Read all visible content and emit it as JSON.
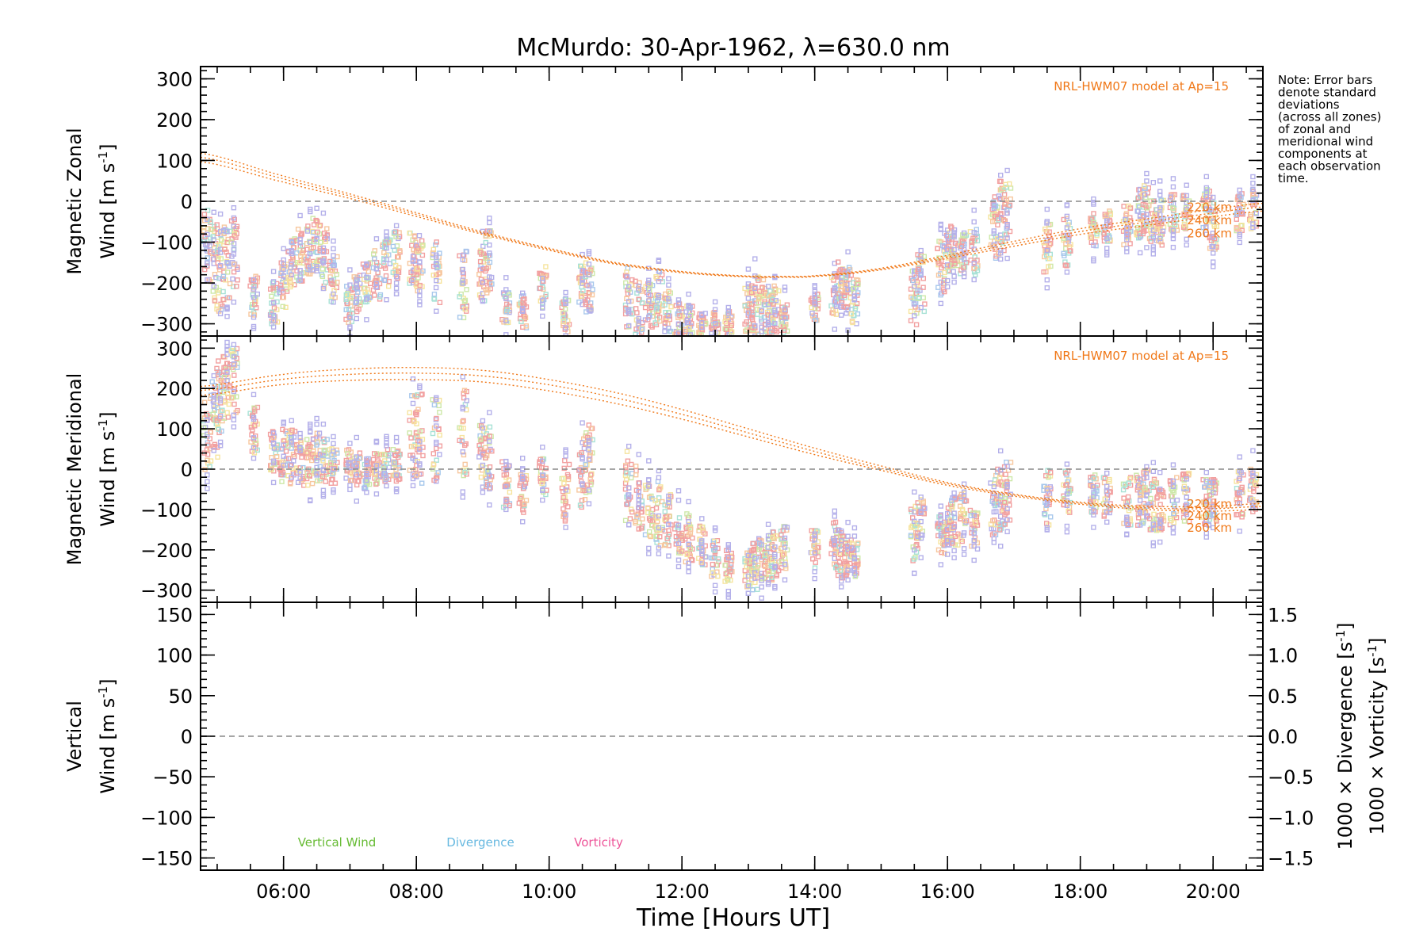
{
  "chart_data": {
    "type": "scatter",
    "title": "McMurdo: 30-Apr-1962, λ=630.0 nm",
    "xlabel": "Time [Hours UT]",
    "x_ticks": [
      "06:00",
      "08:00",
      "10:00",
      "12:00",
      "14:00",
      "16:00",
      "18:00",
      "20:00"
    ],
    "x_tick_hours": [
      6,
      8,
      10,
      12,
      14,
      16,
      18,
      20
    ],
    "xlim": [
      4.75,
      20.75
    ],
    "note": [
      "Note: Error bars",
      "denote standard",
      "deviations",
      "(across all zones)",
      "of zonal and",
      "meridional wind",
      "components at",
      "each observation",
      "time."
    ],
    "model_label": "NRL-HWM07 model at Ap=15",
    "model_altitudes": [
      "220 km",
      "240 km",
      "260 km"
    ],
    "colors": {
      "model": "#f07818",
      "vertical": "#66bb33",
      "divergence": "#66b8e0",
      "vorticity": "#ee5599",
      "scatter": [
        "#f2a0a0",
        "#f7c79e",
        "#f6e49e",
        "#cde8a8",
        "#a8e2d6",
        "#a8c8ec",
        "#b4b0ea"
      ]
    },
    "panels": [
      {
        "id": "zonal",
        "ylabel_line1": "Magnetic Zonal",
        "ylabel_line2": "Wind [m s",
        "ylabel_sup": "-1",
        "ylabel_end": "]",
        "ylim": [
          -330,
          330
        ],
        "yticks": [
          300,
          200,
          100,
          0,
          -100,
          -200,
          -300
        ],
        "ytick_labels": [
          "300",
          "200",
          "100",
          "0",
          "−100",
          "−200",
          "−300"
        ],
        "model_curves": {
          "hours": [
            4.75,
            6,
            7,
            8,
            9,
            10,
            11,
            12,
            13,
            13.5,
            14,
            15,
            16,
            17,
            18,
            19,
            20,
            20.75
          ],
          "alt220": [
            118,
            62,
            18,
            -28,
            -75,
            -115,
            -150,
            -172,
            -183,
            -184,
            -182,
            -164,
            -132,
            -98,
            -67,
            -43,
            -20,
            -5
          ],
          "alt240": [
            108,
            55,
            13,
            -32,
            -78,
            -117,
            -152,
            -173,
            -184,
            -185,
            -183,
            -166,
            -136,
            -104,
            -74,
            -51,
            -29,
            -14
          ],
          "alt260": [
            97,
            47,
            7,
            -37,
            -81,
            -120,
            -154,
            -175,
            -185,
            -186,
            -184,
            -168,
            -140,
            -110,
            -81,
            -59,
            -38,
            -24
          ]
        },
        "data_times": [
          4.85,
          4.95,
          5.05,
          5.15,
          5.25,
          5.55,
          5.85,
          6.0,
          6.12,
          6.25,
          6.4,
          6.5,
          6.6,
          6.75,
          7.0,
          7.1,
          7.25,
          7.4,
          7.55,
          7.7,
          7.95,
          8.05,
          8.3,
          8.7,
          9.0,
          9.1,
          9.35,
          9.6,
          9.9,
          10.25,
          10.5,
          10.6,
          11.2,
          11.35,
          11.5,
          11.65,
          11.8,
          11.95,
          12.1,
          12.3,
          12.5,
          12.7,
          13.0,
          13.1,
          13.2,
          13.3,
          13.4,
          13.55,
          14.0,
          14.3,
          14.4,
          14.5,
          14.6,
          15.5,
          15.6,
          15.9,
          16.0,
          16.1,
          16.25,
          16.4,
          16.7,
          16.8,
          16.9,
          17.5,
          17.8,
          18.2,
          18.4,
          18.7,
          18.9,
          19.0,
          19.1,
          19.2,
          19.4,
          19.6,
          19.9,
          20.0,
          20.4,
          20.6
        ],
        "data_centers": [
          -110,
          -150,
          -170,
          -160,
          -130,
          -240,
          -250,
          -210,
          -150,
          -130,
          -110,
          -100,
          -140,
          -190,
          -250,
          -230,
          -200,
          -180,
          -150,
          -130,
          -140,
          -150,
          -175,
          -200,
          -175,
          -150,
          -260,
          -270,
          -210,
          -280,
          -200,
          -220,
          -230,
          -260,
          -260,
          -240,
          -270,
          -290,
          -290,
          -300,
          -300,
          -300,
          -260,
          -250,
          -260,
          -280,
          -260,
          -290,
          -260,
          -230,
          -200,
          -220,
          -240,
          -240,
          -200,
          -160,
          -130,
          -120,
          -130,
          -120,
          -60,
          -40,
          -30,
          -110,
          -100,
          -70,
          -60,
          -60,
          -30,
          -20,
          -40,
          -50,
          -30,
          -30,
          -20,
          -60,
          -30,
          -20
        ],
        "data_spread": [
          90,
          100,
          110,
          100,
          90,
          60,
          50,
          60,
          60,
          70,
          70,
          60,
          80,
          60,
          50,
          50,
          50,
          60,
          60,
          60,
          70,
          70,
          80,
          90,
          70,
          80,
          40,
          40,
          50,
          40,
          50,
          60,
          80,
          70,
          60,
          70,
          50,
          40,
          40,
          30,
          30,
          30,
          60,
          70,
          70,
          60,
          60,
          40,
          40,
          50,
          60,
          60,
          60,
          70,
          70,
          70,
          60,
          60,
          50,
          60,
          80,
          90,
          80,
          70,
          60,
          40,
          40,
          50,
          60,
          60,
          60,
          60,
          50,
          50,
          50,
          60,
          50,
          50
        ]
      },
      {
        "id": "meridional",
        "ylabel_line1": "Magnetic Meridional",
        "ylabel_line2": "Wind [m s",
        "ylabel_sup": "-1",
        "ylabel_end": "]",
        "ylim": [
          -330,
          330
        ],
        "yticks": [
          300,
          200,
          100,
          0,
          -100,
          -200,
          -300
        ],
        "ytick_labels": [
          "300",
          "200",
          "100",
          "0",
          "−100",
          "−200",
          "−300"
        ],
        "model_curves": {
          "hours": [
            4.75,
            6,
            7,
            8,
            9,
            10,
            11,
            12,
            13,
            14,
            15,
            16,
            17,
            18,
            19,
            20,
            20.75
          ],
          "alt220": [
            205,
            235,
            248,
            252,
            245,
            222,
            190,
            148,
            100,
            52,
            8,
            -33,
            -62,
            -82,
            -92,
            -92,
            -85
          ],
          "alt240": [
            195,
            223,
            235,
            238,
            231,
            209,
            177,
            136,
            90,
            44,
            2,
            -36,
            -64,
            -84,
            -96,
            -98,
            -92
          ],
          "alt260": [
            183,
            210,
            220,
            222,
            216,
            194,
            163,
            124,
            80,
            36,
            -3,
            -40,
            -67,
            -87,
            -100,
            -104,
            -100
          ]
        },
        "data_times": [
          4.85,
          4.95,
          5.05,
          5.15,
          5.25,
          5.55,
          5.85,
          6.0,
          6.12,
          6.25,
          6.4,
          6.5,
          6.6,
          6.75,
          7.0,
          7.1,
          7.25,
          7.4,
          7.55,
          7.7,
          7.95,
          8.05,
          8.3,
          8.7,
          9.0,
          9.1,
          9.35,
          9.6,
          9.9,
          10.25,
          10.5,
          10.6,
          11.2,
          11.35,
          11.5,
          11.65,
          11.8,
          11.95,
          12.1,
          12.3,
          12.5,
          12.7,
          13.0,
          13.1,
          13.2,
          13.3,
          13.4,
          13.55,
          14.0,
          14.3,
          14.4,
          14.5,
          14.6,
          15.5,
          15.6,
          15.9,
          16.0,
          16.1,
          16.25,
          16.4,
          16.7,
          16.8,
          16.9,
          17.5,
          17.8,
          18.2,
          18.4,
          18.7,
          18.9,
          19.0,
          19.1,
          19.2,
          19.4,
          19.6,
          19.9,
          20.0,
          20.4,
          20.6
        ],
        "data_centers": [
          80,
          120,
          180,
          200,
          220,
          100,
          40,
          30,
          30,
          20,
          20,
          30,
          20,
          10,
          10,
          0,
          -10,
          0,
          10,
          10,
          100,
          80,
          70,
          80,
          40,
          30,
          -40,
          -60,
          -20,
          -50,
          0,
          20,
          -40,
          -70,
          -90,
          -110,
          -130,
          -150,
          -170,
          -190,
          -220,
          -240,
          -250,
          -240,
          -230,
          -220,
          -210,
          -200,
          -200,
          -190,
          -210,
          -220,
          -230,
          -160,
          -130,
          -160,
          -140,
          -130,
          -120,
          -150,
          -90,
          -70,
          -60,
          -70,
          -60,
          -60,
          -70,
          -80,
          -80,
          -70,
          -80,
          -90,
          -80,
          -70,
          -80,
          -70,
          -60,
          -50
        ],
        "data_spread": [
          100,
          100,
          90,
          80,
          80,
          60,
          60,
          70,
          70,
          60,
          60,
          60,
          60,
          50,
          40,
          40,
          40,
          40,
          40,
          40,
          120,
          120,
          110,
          130,
          70,
          80,
          60,
          50,
          50,
          80,
          100,
          90,
          90,
          80,
          80,
          80,
          70,
          60,
          60,
          50,
          50,
          40,
          50,
          60,
          60,
          60,
          60,
          60,
          50,
          60,
          60,
          50,
          50,
          70,
          60,
          50,
          50,
          60,
          60,
          50,
          80,
          90,
          80,
          70,
          60,
          50,
          50,
          60,
          70,
          70,
          70,
          70,
          60,
          60,
          60,
          60,
          60,
          60
        ]
      },
      {
        "id": "vertical",
        "ylabel_line1": "Vertical",
        "ylabel_line2": "Wind [m s",
        "ylabel_sup": "-1",
        "ylabel_end": "]",
        "ylim": [
          -165,
          165
        ],
        "yticks": [
          150,
          100,
          50,
          0,
          -50,
          -100,
          -150
        ],
        "ytick_labels": [
          "150",
          "100",
          "50",
          "0",
          "−50",
          "−100",
          "−150"
        ],
        "right_ylim": [
          -1.65,
          1.65
        ],
        "right_yticks": [
          1.5,
          1.0,
          0.5,
          0.0,
          -0.5,
          -1.0,
          -1.5
        ],
        "right_ytick_labels": [
          "1.5",
          "1.0",
          "0.5",
          "0.0",
          "−0.5",
          "−1.0",
          "−1.5"
        ],
        "right_label_div": "1000 × Divergence [s",
        "right_label_vort": "1000 × Vorticity [s",
        "right_label_sup": "-1",
        "right_label_end": "]",
        "legend": [
          "Vertical Wind",
          "Divergence",
          "Vorticity"
        ]
      }
    ]
  }
}
